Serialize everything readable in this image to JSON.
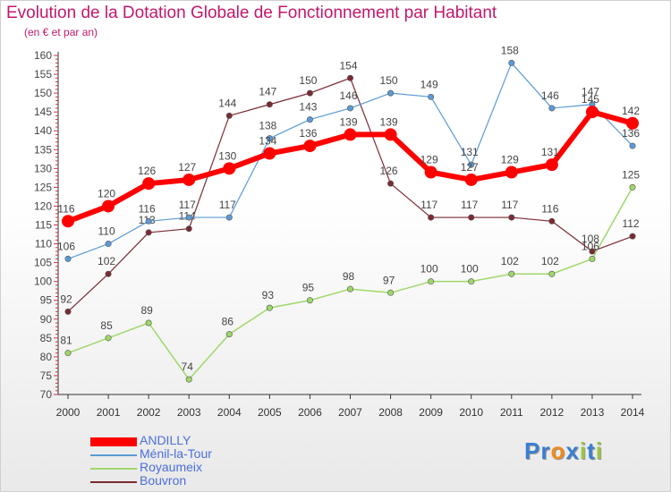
{
  "title": "Evolution de la Dotation Globale de Fonctionnement par Habitant",
  "subtitle": "(en € et par an)",
  "logo": {
    "text": "Proxiti",
    "letters": [
      "P",
      "r",
      "o",
      "x",
      "i",
      "t",
      "i"
    ],
    "colors": [
      "#3a7fd0",
      "#3a7fd0",
      "#ef8a1a",
      "#3a7fd0",
      "#9bc53d",
      "#3a7fd0",
      "#9bc53d"
    ]
  },
  "chart_data": {
    "type": "line",
    "title": "Evolution de la Dotation Globale de Fonctionnement par Habitant",
    "subtitle": "(en € et par an)",
    "xlabel": "",
    "ylabel": "",
    "x": [
      "2000",
      "2001",
      "2002",
      "2003",
      "2004",
      "2005",
      "2006",
      "2007",
      "2008",
      "2009",
      "2010",
      "2011",
      "2012",
      "2013",
      "2014"
    ],
    "ylim": [
      70,
      160
    ],
    "yticks": [
      70,
      75,
      80,
      85,
      90,
      95,
      100,
      105,
      110,
      115,
      120,
      125,
      130,
      135,
      140,
      145,
      150,
      155,
      160
    ],
    "grid": false,
    "legend_position": "bottom-left",
    "series": [
      {
        "name": "Bouvron",
        "color": "#7a2a33",
        "width": 1.2,
        "values": [
          92,
          102,
          113,
          114,
          144,
          147,
          150,
          154,
          126,
          117,
          117,
          117,
          116,
          108,
          112
        ],
        "labels": [
          "92",
          "102",
          "113",
          "114",
          "144",
          "147",
          "150",
          "154",
          "126",
          "117",
          "117",
          "117",
          "116",
          "108",
          "112"
        ]
      },
      {
        "name": "Royaumeix",
        "color": "#9fd86a",
        "width": 1.5,
        "values": [
          81,
          85,
          89,
          74,
          86,
          93,
          95,
          98,
          97,
          100,
          100,
          102,
          102,
          106,
          125
        ],
        "labels": [
          "81",
          "85",
          "89",
          "74",
          "86",
          "93",
          "95",
          "98",
          "97",
          "100",
          "100",
          "102",
          "102",
          "106",
          "125"
        ]
      },
      {
        "name": "Ménil-la-Tour",
        "color": "#5b9bd5",
        "width": 1.2,
        "values": [
          106,
          110,
          116,
          117,
          117,
          138,
          143,
          146,
          150,
          149,
          131,
          158,
          146,
          147,
          136
        ],
        "labels": [
          "106",
          "110",
          "116",
          "117",
          "117",
          "138",
          "143",
          "146",
          "150",
          "149",
          "131",
          "158",
          "146",
          "147",
          "136"
        ]
      },
      {
        "name": "ANDILLY",
        "color": "#ff0000",
        "width": 6,
        "values": [
          116,
          120,
          126,
          127,
          130,
          134,
          136,
          139,
          139,
          129,
          127,
          129,
          131,
          145,
          142
        ],
        "labels": [
          "116",
          "120",
          "126",
          "127",
          "130",
          "134",
          "136",
          "139",
          "139",
          "129",
          "127",
          "129",
          "131",
          "145",
          "142"
        ]
      }
    ],
    "legend_order": [
      "ANDILLY",
      "Ménil-la-Tour",
      "Royaumeix",
      "Bouvron"
    ]
  }
}
